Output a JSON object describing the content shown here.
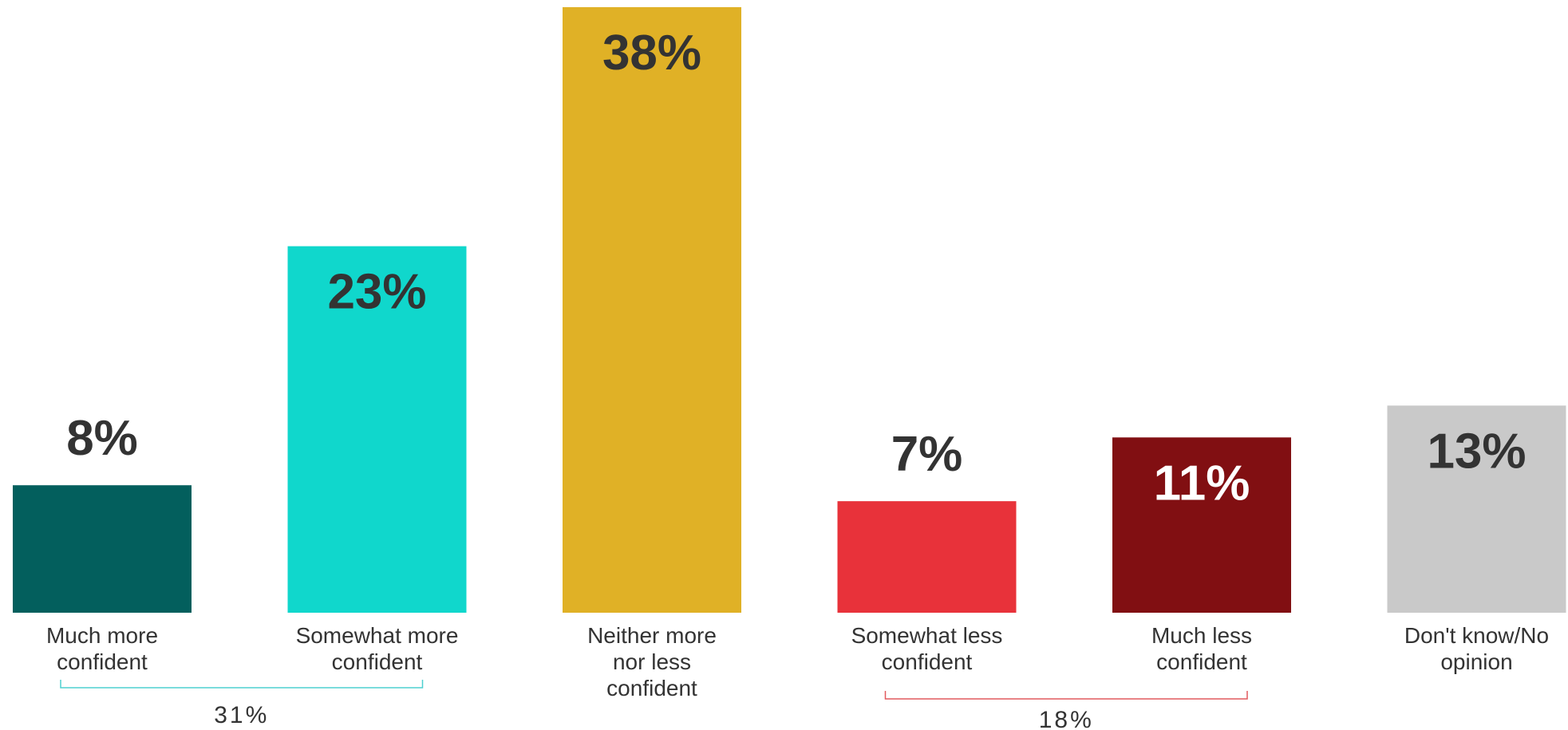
{
  "chart_data": {
    "type": "bar",
    "categories": [
      [
        "Much more",
        "confident"
      ],
      [
        "Somewhat more",
        "confident"
      ],
      [
        "Neither more",
        "nor less",
        "confident"
      ],
      [
        "Somewhat less",
        "confident"
      ],
      [
        "Much less",
        "confident"
      ],
      [
        "Don't know/No",
        "opinion"
      ]
    ],
    "values": [
      8,
      23,
      38,
      7,
      11,
      13
    ],
    "value_labels": [
      "8%",
      "23%",
      "38%",
      "7%",
      "11%",
      "13%"
    ],
    "colors": [
      "#035f5d",
      "#10d7cc",
      "#e0b126",
      "#e8323a",
      "#810f12",
      "#c9c9c9"
    ],
    "label_colors": [
      "#333333",
      "#333333",
      "#333333",
      "#333333",
      "#ffffff",
      "#333333"
    ],
    "label_position": [
      "above",
      "inside",
      "inside",
      "above",
      "inside",
      "inside"
    ],
    "ylim": [
      0,
      38
    ],
    "groups": [
      {
        "label": "31%",
        "from": 0,
        "to": 1,
        "color": "#4fd0d0"
      },
      {
        "label": "18%",
        "from": 3,
        "to": 4,
        "color": "#e25a5f"
      }
    ]
  }
}
